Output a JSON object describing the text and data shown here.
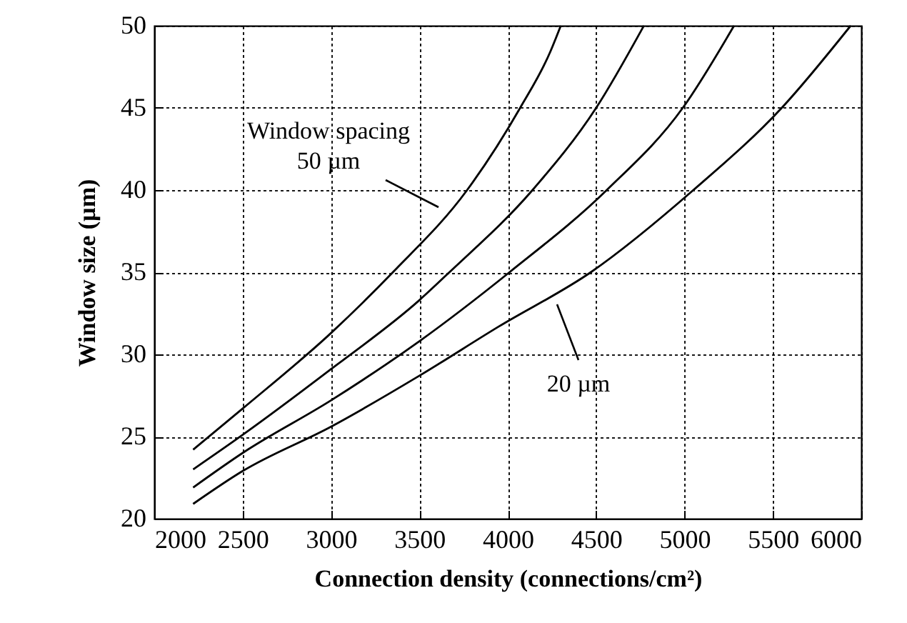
{
  "chart_data": {
    "type": "line",
    "xlabel": "Connection density (connections/cm²)",
    "ylabel": "Window size (µm)",
    "xlim": [
      2000,
      6000
    ],
    "xticks": [
      2000,
      2500,
      3000,
      3500,
      4000,
      4500,
      5000,
      5500,
      6000
    ],
    "ylim": [
      20,
      50
    ],
    "yticks": [
      20,
      25,
      30,
      35,
      40,
      45,
      50
    ],
    "grid": true,
    "marker": "none",
    "line_style": "solid",
    "series": [
      {
        "color": "#000000",
        "x": [
          2220,
          2500,
          3000,
          3350,
          3770,
          4070,
          4240,
          4300
        ],
        "values": [
          24.2,
          26.7,
          31.3,
          35,
          40,
          45,
          48.4,
          50
        ]
      },
      {
        "color": "#000000",
        "x": [
          2220,
          2500,
          3000,
          3500,
          3670,
          4140,
          4500,
          4770
        ],
        "values": [
          23.0,
          25.1,
          29.1,
          33.3,
          35,
          40,
          45,
          50
        ]
      },
      {
        "color": "#000000",
        "x": [
          2220,
          2500,
          3000,
          3500,
          4010,
          4560,
          4990,
          5280
        ],
        "values": [
          21.9,
          24.0,
          27.2,
          30.8,
          35,
          40,
          45,
          50
        ]
      },
      {
        "color": "#000000",
        "x": [
          2220,
          2500,
          3000,
          3500,
          3950,
          4470,
          5050,
          5550,
          5940
        ],
        "values": [
          20.9,
          22.9,
          25.6,
          28.7,
          31.7,
          35,
          40,
          45,
          50
        ]
      }
    ],
    "annotations": [
      "Window spacing\n50 µm",
      "20 µm"
    ]
  }
}
